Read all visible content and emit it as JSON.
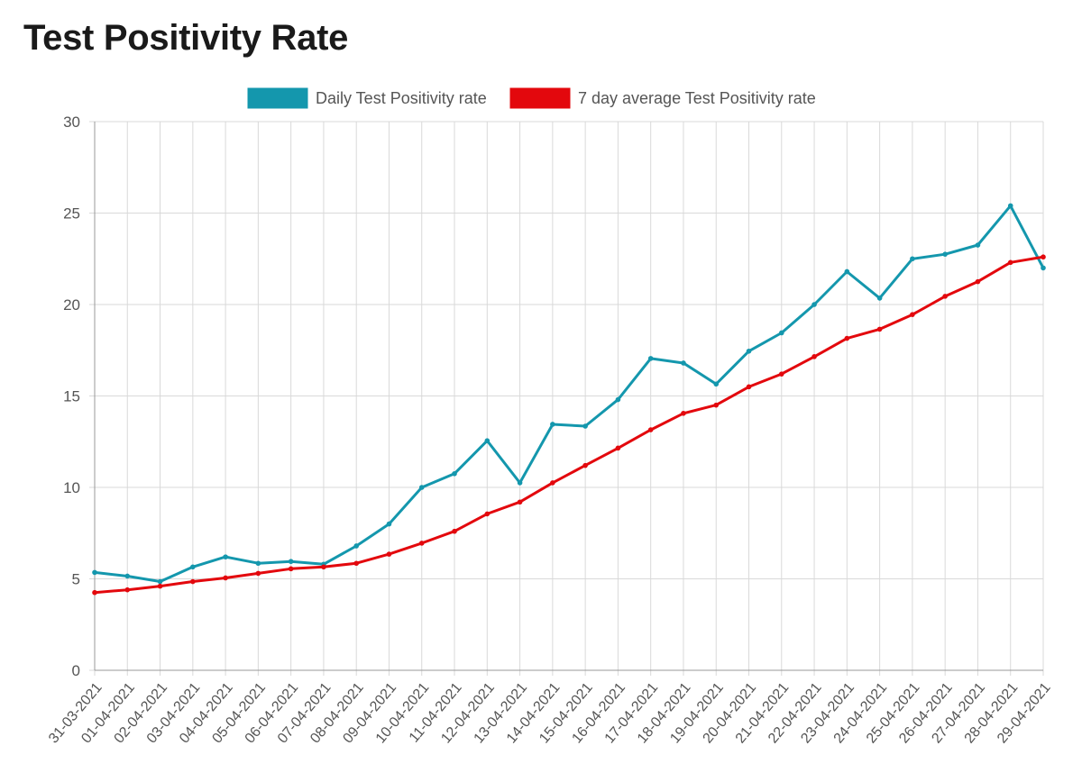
{
  "page": {
    "title": "Test Positivity Rate"
  },
  "colors": {
    "daily": "#1497ad",
    "average": "#e3080d",
    "grid": "#d9d9d9",
    "axis": "#999999",
    "tick_text": "#555555"
  },
  "chart_data": {
    "type": "line",
    "title": "Test Positivity Rate",
    "xlabel": "",
    "ylabel": "",
    "ylim": [
      0,
      30
    ],
    "yticks": [
      0,
      5,
      10,
      15,
      20,
      25,
      30
    ],
    "grid": true,
    "legend_position": "top-center",
    "categories": [
      "31-03-2021",
      "01-04-2021",
      "02-04-2021",
      "03-04-2021",
      "04-04-2021",
      "05-04-2021",
      "06-04-2021",
      "07-04-2021",
      "08-04-2021",
      "09-04-2021",
      "10-04-2021",
      "11-04-2021",
      "12-04-2021",
      "13-04-2021",
      "14-04-2021",
      "15-04-2021",
      "16-04-2021",
      "17-04-2021",
      "18-04-2021",
      "19-04-2021",
      "20-04-2021",
      "21-04-2021",
      "22-04-2021",
      "23-04-2021",
      "24-04-2021",
      "25-04-2021",
      "26-04-2021",
      "27-04-2021",
      "28-04-2021",
      "29-04-2021"
    ],
    "series": [
      {
        "name": "Daily Test Positivity rate",
        "color": "#1497ad",
        "values": [
          5.35,
          5.15,
          4.85,
          5.65,
          6.2,
          5.85,
          5.95,
          5.8,
          6.8,
          8.0,
          10.0,
          10.75,
          12.55,
          10.25,
          13.45,
          13.35,
          14.8,
          17.05,
          16.8,
          15.65,
          17.45,
          18.45,
          20.0,
          21.8,
          20.35,
          22.5,
          22.75,
          23.25,
          25.4,
          22.0
        ]
      },
      {
        "name": "7 day average Test Positivity rate",
        "color": "#e3080d",
        "values": [
          4.25,
          4.4,
          4.6,
          4.85,
          5.05,
          5.3,
          5.55,
          5.65,
          5.85,
          6.35,
          6.95,
          7.6,
          8.55,
          9.2,
          10.25,
          11.2,
          12.15,
          13.15,
          14.05,
          14.5,
          15.5,
          16.2,
          17.15,
          18.15,
          18.65,
          19.45,
          20.45,
          21.25,
          22.3,
          22.6
        ]
      }
    ]
  }
}
